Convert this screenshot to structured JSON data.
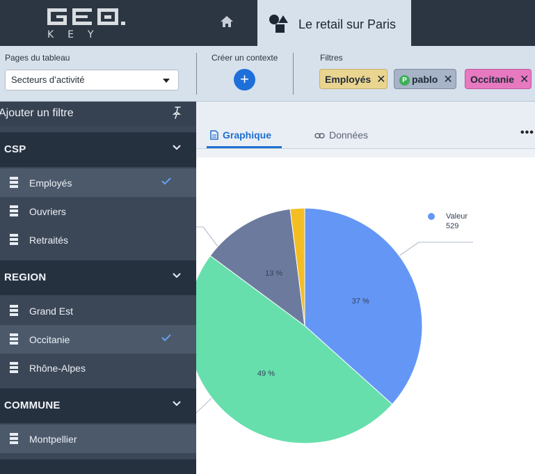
{
  "header": {
    "logo_key": "KEY",
    "context_title": "Le retail sur Paris"
  },
  "controls": {
    "pages_label": "Pages du tableau",
    "pages_selected": "Secteurs d’activité",
    "create_context_label": "Créer un contexte",
    "create_context_button": "+",
    "filters_label": "Filtres",
    "filters": [
      {
        "label": "Employés",
        "color": "#ead590"
      },
      {
        "label": "pablo",
        "badge": "P",
        "color": "#a7b3c6"
      },
      {
        "label": "Occitanie",
        "color": "#e679c0"
      }
    ]
  },
  "sidebar": {
    "title": "Ajouter un filtre",
    "groups": [
      {
        "title": "CSP",
        "items": [
          {
            "label": "Employés",
            "checked": true
          },
          {
            "label": "Ouvriers",
            "checked": false
          },
          {
            "label": "Retraités",
            "checked": false
          }
        ]
      },
      {
        "title": "REGION",
        "items": [
          {
            "label": "Grand Est",
            "checked": false
          },
          {
            "label": "Occitanie",
            "checked": true
          },
          {
            "label": "Rhône-Alpes",
            "checked": false
          }
        ]
      },
      {
        "title": "COMMUNE",
        "items": [
          {
            "label": "Montpellier",
            "checked": false
          }
        ]
      }
    ]
  },
  "tabs": {
    "graph_label": "Graphique",
    "data_label": "Données",
    "more_label": "•••"
  },
  "chart_data": {
    "type": "pie",
    "slices": [
      {
        "label": "37 %",
        "value": 37,
        "color": "#6497f5"
      },
      {
        "label": "49 %",
        "value": 49,
        "color": "#66dfad"
      },
      {
        "label": "13 %",
        "value": 13,
        "color": "#6c7b9d"
      },
      {
        "label": "",
        "value": 2,
        "color": "#f4bd22"
      }
    ],
    "tooltip": {
      "series": "Valeur",
      "value": "529",
      "color": "#6497f5"
    }
  }
}
